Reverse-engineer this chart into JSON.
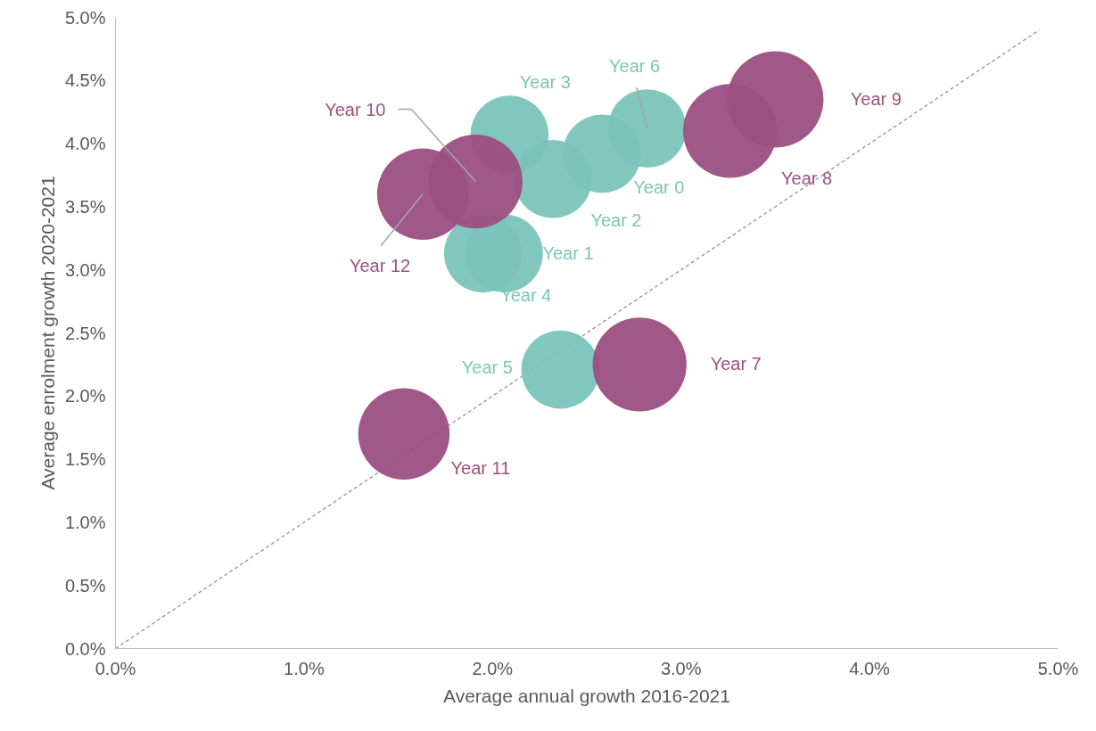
{
  "chart_data": {
    "type": "bubble",
    "xlabel": "Average annual growth 2016-2021",
    "ylabel": "Average enrolment growth 2020-2021",
    "xlim": [
      0,
      5
    ],
    "ylim": [
      0,
      5
    ],
    "xticks": [
      {
        "value": 0,
        "label": "0.0%"
      },
      {
        "value": 1,
        "label": "1.0%"
      },
      {
        "value": 2,
        "label": "2.0%"
      },
      {
        "value": 3,
        "label": "3.0%"
      },
      {
        "value": 4,
        "label": "4.0%"
      },
      {
        "value": 5,
        "label": "5.0%"
      }
    ],
    "yticks": [
      {
        "value": 0,
        "label": "0.0%"
      },
      {
        "value": 0.5,
        "label": "0.5%"
      },
      {
        "value": 1,
        "label": "1.0%"
      },
      {
        "value": 1.5,
        "label": "1.5%"
      },
      {
        "value": 2,
        "label": "2.0%"
      },
      {
        "value": 2.5,
        "label": "2.5%"
      },
      {
        "value": 3,
        "label": "3.0%"
      },
      {
        "value": 3.5,
        "label": "3.5%"
      },
      {
        "value": 4,
        "label": "4.0%"
      },
      {
        "value": 4.5,
        "label": "4.5%"
      },
      {
        "value": 5,
        "label": "5.0%"
      }
    ],
    "grid": false,
    "series": [
      {
        "name": "Year 0",
        "color": "#7bc4bb",
        "x": [
          2.58
        ],
        "values": [
          3.92
        ],
        "sizes": [
          0.66
        ]
      },
      {
        "name": "Year 1",
        "color": "#7bc4bb",
        "x": [
          2.06
        ],
        "values": [
          3.13
        ],
        "sizes": [
          0.66
        ]
      },
      {
        "name": "Year 2",
        "color": "#7bc4bb",
        "x": [
          2.32
        ],
        "values": [
          3.72
        ],
        "sizes": [
          0.66
        ]
      },
      {
        "name": "Year 3",
        "color": "#7bc4bb",
        "x": [
          2.09
        ],
        "values": [
          4.07
        ],
        "sizes": [
          0.66
        ]
      },
      {
        "name": "Year 4",
        "color": "#7bc4bb",
        "x": [
          1.95
        ],
        "values": [
          3.13
        ],
        "sizes": [
          0.66
        ]
      },
      {
        "name": "Year 5",
        "color": "#7bc4bb",
        "x": [
          2.36
        ],
        "values": [
          2.21
        ],
        "sizes": [
          0.66
        ]
      },
      {
        "name": "Year 6",
        "color": "#7bc4bb",
        "x": [
          2.82
        ],
        "values": [
          4.12
        ],
        "sizes": [
          0.66
        ]
      },
      {
        "name": "Year 7",
        "color": "#9b4f82",
        "x": [
          2.78
        ],
        "values": [
          2.25
        ],
        "sizes": [
          0.95
        ]
      },
      {
        "name": "Year 8",
        "color": "#9b4f82",
        "x": [
          3.26
        ],
        "values": [
          4.1
        ],
        "sizes": [
          0.95
        ]
      },
      {
        "name": "Year 9",
        "color": "#9b4f82",
        "x": [
          3.5
        ],
        "values": [
          4.35
        ],
        "sizes": [
          1
        ]
      },
      {
        "name": "Year 10",
        "color": "#9b4f82",
        "x": [
          1.91
        ],
        "values": [
          3.7
        ],
        "sizes": [
          0.95
        ]
      },
      {
        "name": "Year 11",
        "color": "#9b4f82",
        "x": [
          1.53
        ],
        "values": [
          1.7
        ],
        "sizes": [
          0.9
        ]
      },
      {
        "name": "Year 12",
        "color": "#9b4f82",
        "x": [
          1.63
        ],
        "values": [
          3.6
        ],
        "sizes": [
          0.9
        ]
      },
      {
        "type": "line",
        "color": "#8c8c8c",
        "line_style": "dashed",
        "x": [
          0,
          4.9
        ],
        "values": [
          0,
          4.9
        ]
      }
    ]
  }
}
